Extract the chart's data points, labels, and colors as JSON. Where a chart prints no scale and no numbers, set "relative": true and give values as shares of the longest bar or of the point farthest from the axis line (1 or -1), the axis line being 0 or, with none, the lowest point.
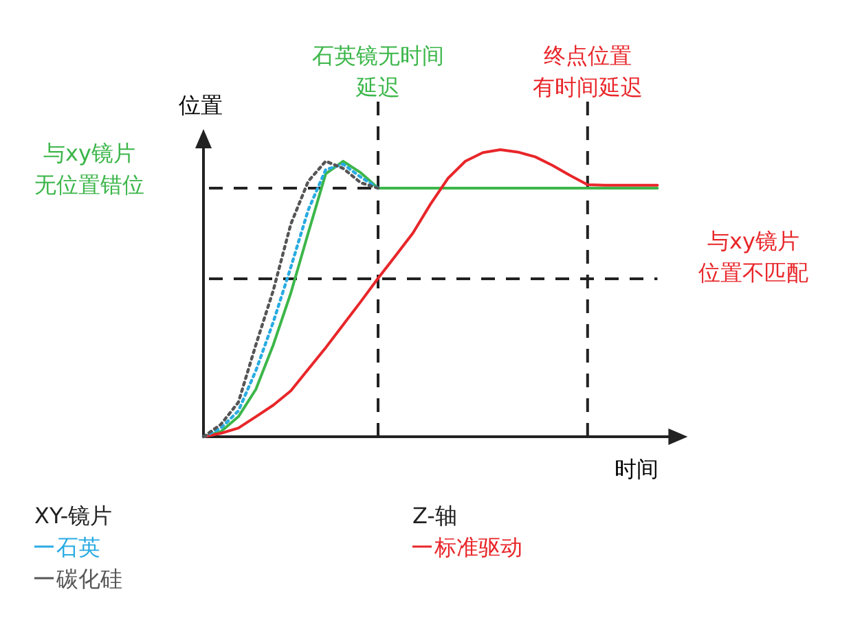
{
  "chart_data": {
    "type": "line",
    "relative": true,
    "xlabel": "时间",
    "ylabel": "位置",
    "legend": "bottom",
    "marker": "none",
    "categories": [
      null,
      null,
      null,
      null,
      null,
      null,
      null,
      null,
      null,
      null,
      null,
      null,
      null,
      null,
      null,
      null,
      null,
      null,
      null,
      null,
      null,
      null,
      null,
      null,
      null,
      null,
      null
    ],
    "annotations": [
      "XY-镜片",
      "Z-轴",
      "石英镜无时间延迟",
      "终点位置有时间延迟"
    ],
    "ref_lines": [
      {
        "axis": "y",
        "value": 0.866,
        "label": "与xy镜片无位置错位",
        "line_style": "dashed"
      },
      {
        "axis": "y",
        "value": 0.55,
        "label": "与xy镜片位置不匹配",
        "line_style": "dashed"
      }
    ],
    "series": [
      {
        "name": "石英",
        "color": "#29abe2",
        "line_style": "dotted",
        "values": [
          0,
          0.03,
          0.09,
          0.23,
          0.4,
          0.59,
          0.79,
          0.93,
          0.95,
          0.905,
          0.866,
          null,
          null,
          null,
          null,
          null,
          null,
          null,
          null,
          null,
          null,
          null,
          null,
          null,
          null,
          null,
          null
        ]
      },
      {
        "name": "碳化硅",
        "color": "#555555",
        "line_style": "dotted",
        "values": [
          0,
          0.043,
          0.12,
          0.32,
          0.51,
          0.74,
          0.89,
          0.96,
          0.935,
          0.885,
          0.866,
          null,
          null,
          null,
          null,
          null,
          null,
          null,
          null,
          null,
          null,
          null,
          null,
          null,
          null,
          null,
          null
        ]
      },
      {
        "color": "#3cb64a",
        "line_style": "solid",
        "values": [
          0,
          0.018,
          0.07,
          0.165,
          0.32,
          0.5,
          0.71,
          0.916,
          0.96,
          0.92,
          0.866,
          0.866,
          0.866,
          0.866,
          0.866,
          0.866,
          0.866,
          0.866,
          0.866,
          0.866,
          0.866,
          0.866,
          0.866,
          0.866,
          0.866,
          0.866,
          0.866
        ]
      },
      {
        "name": "标准驱动",
        "color": "#e8262a",
        "line_style": "solid",
        "values": [
          0,
          0.012,
          0.03,
          0.07,
          0.11,
          0.16,
          0.235,
          0.31,
          0.39,
          0.47,
          0.552,
          0.63,
          0.71,
          0.81,
          0.9,
          0.96,
          0.99,
          1.0,
          0.992,
          0.975,
          0.945,
          0.91,
          0.878,
          0.876,
          0.876,
          0.876,
          0.876
        ]
      }
    ]
  }
}
